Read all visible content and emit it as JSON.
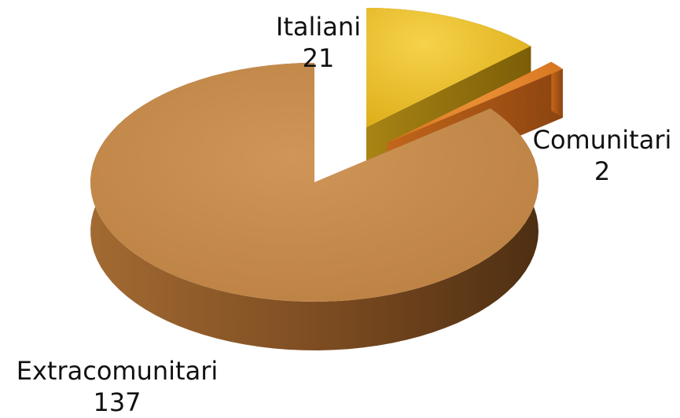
{
  "chart_data": {
    "type": "pie",
    "style": "3d-exploded",
    "title": "",
    "legend": "none",
    "slices": [
      {
        "label": "Italiani",
        "value": 21,
        "color": "#f0c020"
      },
      {
        "label": "Comunitari",
        "value": 2,
        "color": "#e07a1e"
      },
      {
        "label": "Extracomunitari",
        "value": 137,
        "color": "#c0864a"
      }
    ]
  }
}
